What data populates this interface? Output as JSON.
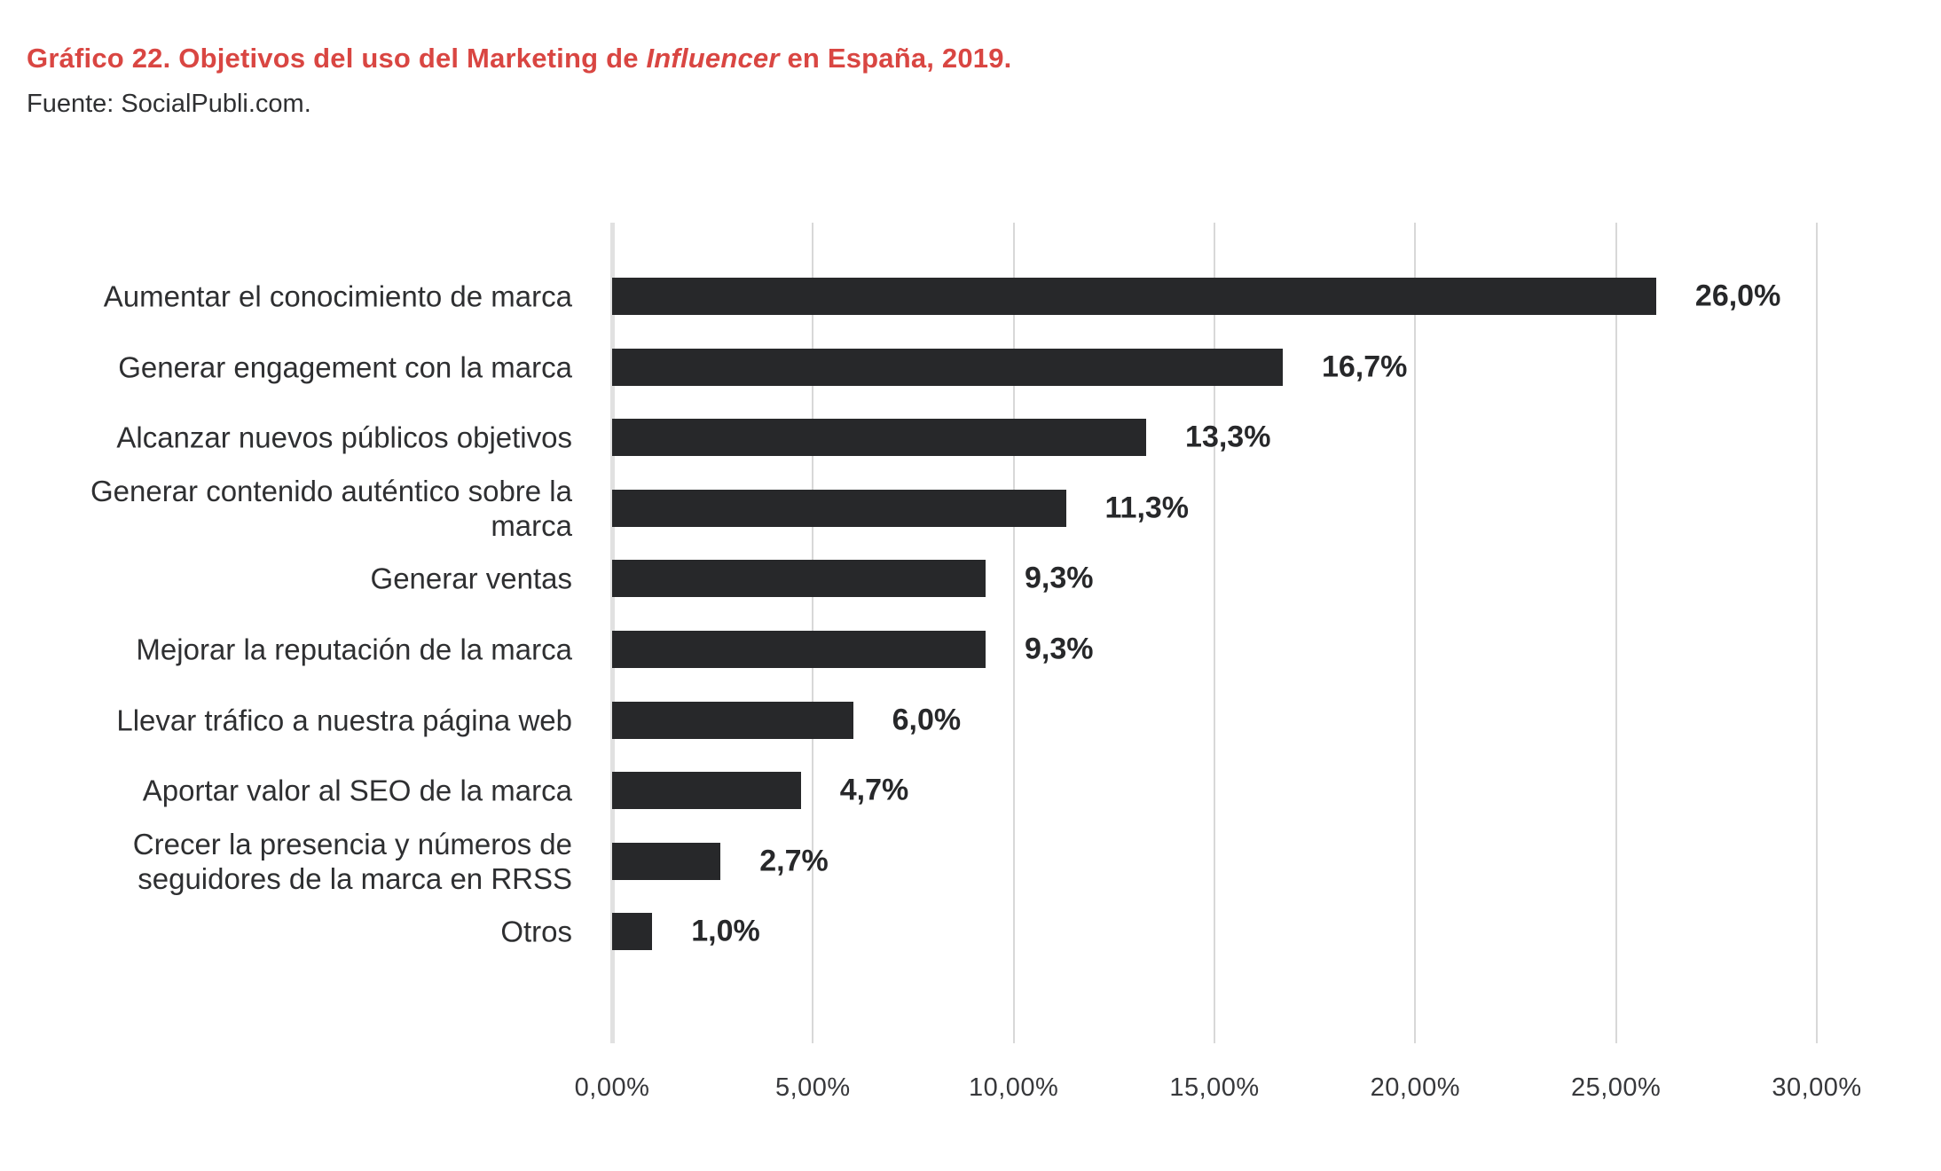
{
  "header": {
    "title_prefix": "Gráfico 22. Objetivos del uso del Marketing de ",
    "title_italic": "Influencer",
    "title_suffix": " en España, 2019.",
    "source": "Fuente: SocialPubli.com."
  },
  "chart_data": {
    "type": "bar",
    "orientation": "horizontal",
    "title": "Gráfico 22. Objetivos del uso del Marketing de Influencer en España, 2019.",
    "source": "Fuente: SocialPubli.com.",
    "categories": [
      "Aumentar el conocimiento de marca",
      "Generar engagement con la marca",
      "Alcanzar nuevos públicos objetivos",
      "Generar contenido auténtico sobre la\nmarca",
      "Generar ventas",
      "Mejorar la reputación de la marca",
      "Llevar tráfico a nuestra página web",
      "Aportar valor al SEO de la marca",
      "Crecer la presencia y números de\nseguidores de la marca en RRSS",
      "Otros"
    ],
    "values": [
      26.0,
      16.7,
      13.3,
      11.3,
      9.3,
      9.3,
      6.0,
      4.7,
      2.7,
      1.0
    ],
    "value_labels": [
      "26,0%",
      "16,7%",
      "13,3%",
      "11,3%",
      "9,3%",
      "9,3%",
      "6,0%",
      "4,7%",
      "2,7%",
      "1,0%"
    ],
    "xlabel": "",
    "ylabel": "",
    "xlim": [
      0,
      30
    ],
    "x_ticks": [
      {
        "value": 0,
        "label": "0,00%"
      },
      {
        "value": 5,
        "label": "5,00%"
      },
      {
        "value": 10,
        "label": "10,00%"
      },
      {
        "value": 15,
        "label": "15,00%"
      },
      {
        "value": 20,
        "label": "20,00%"
      },
      {
        "value": 25,
        "label": "25,00%"
      },
      {
        "value": 30,
        "label": "30,00%"
      }
    ],
    "grid": true,
    "legend": false,
    "bar_color": "#27282a"
  },
  "colors": {
    "title": "#d94642",
    "text": "#2e2f31",
    "bar": "#27282a",
    "gridline": "#d8d8d8",
    "axis_line": "#e1e1e1",
    "background": "#ffffff"
  }
}
